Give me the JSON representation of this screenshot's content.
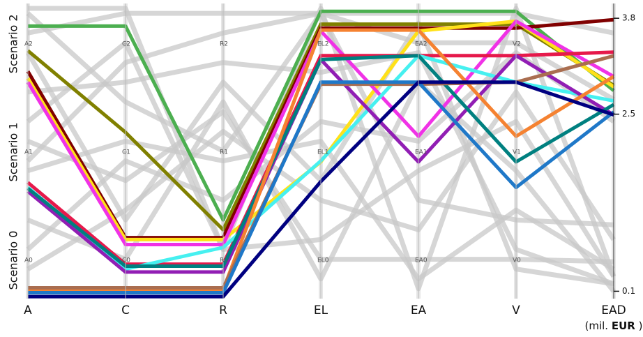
{
  "chart_data": {
    "type": "parallel",
    "scenarios": [
      "Scenario 0",
      "Scenario 1",
      "Scenario 2"
    ],
    "axes": [
      {
        "name": "A",
        "ylim": [
          0,
          3
        ],
        "ticks": [
          {
            "value": 0.39,
            "label": "A0"
          },
          {
            "value": 1.49,
            "label": "A1"
          },
          {
            "value": 2.59,
            "label": "A2"
          }
        ]
      },
      {
        "name": "C",
        "ylim": [
          0,
          3
        ],
        "ticks": [
          {
            "value": 0.39,
            "label": "C0"
          },
          {
            "value": 1.49,
            "label": "C1"
          },
          {
            "value": 2.59,
            "label": "C2"
          }
        ]
      },
      {
        "name": "R",
        "ylim": [
          0,
          3
        ],
        "ticks": [
          {
            "value": 0.39,
            "label": "R0"
          },
          {
            "value": 1.49,
            "label": "R1"
          },
          {
            "value": 2.59,
            "label": "R2"
          }
        ]
      },
      {
        "name": "EL",
        "ylim": [
          0,
          3
        ],
        "ticks": [
          {
            "value": 0.39,
            "label": "EL0"
          },
          {
            "value": 1.49,
            "label": "EL1"
          },
          {
            "value": 2.59,
            "label": "EL2"
          }
        ]
      },
      {
        "name": "EA",
        "ylim": [
          0,
          3
        ],
        "ticks": [
          {
            "value": 0.39,
            "label": "EA0"
          },
          {
            "value": 1.49,
            "label": "EA1"
          },
          {
            "value": 2.59,
            "label": "EA2"
          }
        ]
      },
      {
        "name": "V",
        "ylim": [
          0,
          3
        ],
        "ticks": [
          {
            "value": 0.39,
            "label": "V0"
          },
          {
            "value": 1.49,
            "label": "V1"
          },
          {
            "value": 2.59,
            "label": "V2"
          }
        ]
      },
      {
        "name": "EAD",
        "unit_open": "(mil.",
        "unit": "EUR",
        "unit_close": ")",
        "ylim": [
          0,
          4
        ],
        "ticks": [
          0.1,
          2.5,
          3.8
        ]
      }
    ],
    "background_series": [
      {
        "color": "#c8c8c8",
        "values": [
          2.7,
          2.9,
          2.9,
          2.9,
          2.9,
          2.9,
          3.6
        ]
      },
      {
        "color": "#c8c8c8",
        "values": [
          2.9,
          2.0,
          1.5,
          2.9,
          2.6,
          2.6,
          2.7
        ]
      },
      {
        "color": "#c8c8c8",
        "values": [
          1.4,
          2.4,
          2.7,
          2.9,
          1.0,
          0.8,
          1.0
        ]
      },
      {
        "color": "#c8c8c8",
        "values": [
          1.6,
          1.2,
          1.9,
          0.4,
          0.4,
          0.4,
          0.5
        ]
      },
      {
        "color": "#c8c8c8",
        "values": [
          0.5,
          1.4,
          1.0,
          1.8,
          1.6,
          2.5,
          2.4
        ]
      },
      {
        "color": "#c8c8c8",
        "values": [
          2.5,
          0.8,
          2.2,
          1.2,
          2.8,
          0.3,
          0.2
        ]
      },
      {
        "color": "#c8c8c8",
        "values": [
          1.8,
          2.6,
          0.5,
          0.6,
          1.3,
          1.8,
          0.3
        ]
      },
      {
        "color": "#c8c8c8",
        "values": [
          0.8,
          0.4,
          2.0,
          0.2,
          2.2,
          1.3,
          0.1
        ]
      },
      {
        "color": "#c8c8c8",
        "values": [
          1.3,
          1.6,
          1.4,
          1.6,
          0.2,
          0.9,
          0.4
        ]
      },
      {
        "color": "#c8c8c8",
        "values": [
          2.1,
          2.2,
          2.4,
          2.3,
          2.5,
          0.5,
          0.2
        ]
      },
      {
        "color": "#c8c8c8",
        "values": [
          0.3,
          0.9,
          1.7,
          1.0,
          0.7,
          2.1,
          0.8
        ]
      },
      {
        "color": "#c8c8c8",
        "values": [
          2.95,
          2.95,
          0.5,
          2.95,
          0.1,
          2.95,
          0.3
        ]
      }
    ],
    "series": [
      {
        "color": "#4caf50",
        "values": [
          2.77,
          2.77,
          0.8,
          2.92,
          2.92,
          2.92,
          2.82
        ]
      },
      {
        "color": "#808000",
        "values": [
          2.52,
          1.69,
          0.7,
          2.79,
          2.79,
          2.79,
          2.89
        ]
      },
      {
        "color": "#800000",
        "values": [
          2.31,
          0.62,
          0.62,
          2.75,
          2.75,
          2.75,
          3.78
        ]
      },
      {
        "color": "#ffe119",
        "values": [
          2.24,
          0.6,
          0.6,
          1.39,
          2.72,
          2.82,
          2.87
        ]
      },
      {
        "color": "#f032e6",
        "values": [
          2.2,
          0.55,
          0.55,
          2.72,
          1.65,
          2.82,
          3.01
        ]
      },
      {
        "color": "#e6194b",
        "values": [
          1.18,
          0.35,
          0.35,
          2.47,
          2.47,
          2.47,
          3.34
        ]
      },
      {
        "color": "#46f0f0",
        "values": [
          1.13,
          0.3,
          0.52,
          1.4,
          2.47,
          2.2,
          2.68
        ]
      },
      {
        "color": "#911eb4",
        "values": [
          1.09,
          0.27,
          0.27,
          2.43,
          1.39,
          2.47,
          2.49
        ]
      },
      {
        "color": "#008080",
        "values": [
          1.12,
          0.33,
          0.33,
          2.43,
          2.47,
          1.39,
          2.63
        ]
      },
      {
        "color": "#f58231",
        "values": [
          0.09,
          0.09,
          0.09,
          2.73,
          2.73,
          1.65,
          3.01
        ]
      },
      {
        "color": "#aa6e50",
        "values": [
          0.11,
          0.11,
          0.11,
          2.18,
          2.18,
          2.2,
          3.29
        ]
      },
      {
        "color": "#1f78c8",
        "values": [
          0.06,
          0.06,
          0.06,
          2.2,
          2.2,
          1.13,
          2.53
        ]
      },
      {
        "color": "#000080",
        "values": [
          0.02,
          0.02,
          0.02,
          1.19,
          2.2,
          2.2,
          2.49
        ]
      }
    ]
  }
}
